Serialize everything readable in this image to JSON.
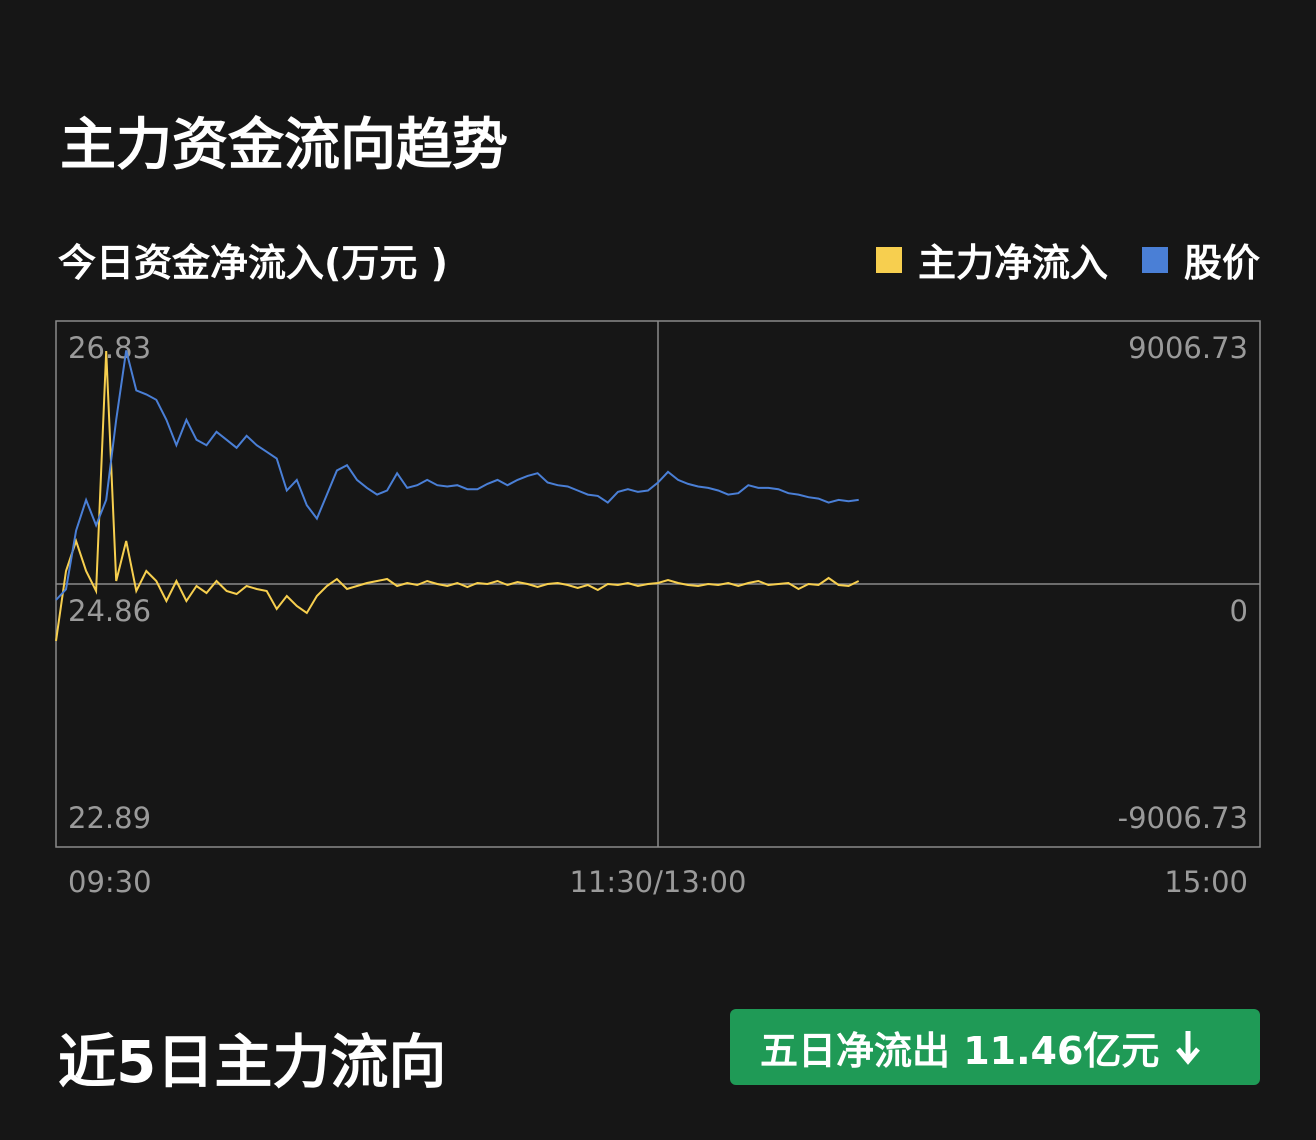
{
  "header": {
    "title": "主力资金流向趋势"
  },
  "chart_data": {
    "type": "line",
    "subtitle": "今日资金净流入(万元 )",
    "x": [
      0,
      2,
      4,
      6,
      8,
      10,
      12,
      14,
      16,
      18,
      20,
      22,
      24,
      26,
      28,
      30,
      32,
      34,
      36,
      38,
      40,
      42,
      44,
      46,
      48,
      50,
      52,
      54,
      56,
      58,
      60,
      62,
      64,
      66,
      68,
      70,
      72,
      74,
      76,
      78,
      80,
      82,
      84,
      86,
      88,
      90,
      92,
      94,
      96,
      98,
      100,
      102,
      104,
      106,
      108,
      110,
      112,
      114,
      116,
      118,
      120,
      122,
      124,
      126,
      128,
      130,
      132,
      134,
      136,
      138,
      140,
      142,
      144,
      146,
      148,
      150,
      152,
      154,
      156,
      158,
      160
    ],
    "xlim": [
      0,
      240
    ],
    "xticks": [
      {
        "value": 0,
        "label": "09:30"
      },
      {
        "value": 120,
        "label": "11:30/13:00"
      },
      {
        "value": 240,
        "label": "15:00"
      }
    ],
    "ylim": [
      22.89,
      26.83
    ],
    "yticks": [
      26.83,
      24.86,
      22.89
    ],
    "y2lim": [
      -9006.73,
      9006.73
    ],
    "y2ticks": [
      9006.73,
      0,
      -9006.73
    ],
    "grid": true,
    "series": [
      {
        "name": "主力净流入",
        "color": "#f7cf4f",
        "axis": "y2",
        "values": [
          -1952,
          445,
          1473,
          445,
          -240,
          7981,
          103,
          1473,
          -240,
          445,
          103,
          -582,
          103,
          -582,
          -68,
          -308,
          103,
          -240,
          -342,
          -68,
          -171,
          -240,
          -856,
          -411,
          -753,
          -993,
          -411,
          -68,
          171,
          -171,
          -68,
          34,
          103,
          171,
          -68,
          34,
          -34,
          103,
          0,
          -68,
          34,
          -103,
          34,
          0,
          103,
          -34,
          68,
          0,
          -103,
          0,
          34,
          -34,
          -137,
          -34,
          -205,
          0,
          -34,
          34,
          -68,
          0,
          34,
          137,
          34,
          -34,
          -68,
          0,
          -34,
          34,
          -68,
          34,
          103,
          -34,
          0,
          34,
          -171,
          0,
          -34,
          205,
          -34,
          -68,
          103
        ]
      },
      {
        "name": "股价",
        "color": "#4a7fd6",
        "axis": "y",
        "values": [
          24.74,
          24.82,
          25.26,
          25.49,
          25.3,
          25.49,
          26.09,
          26.61,
          26.31,
          26.28,
          26.24,
          26.09,
          25.9,
          26.09,
          25.94,
          25.9,
          26.0,
          25.94,
          25.88,
          25.97,
          25.9,
          25.85,
          25.8,
          25.56,
          25.64,
          25.45,
          25.35,
          25.53,
          25.71,
          25.75,
          25.64,
          25.58,
          25.53,
          25.56,
          25.69,
          25.58,
          25.6,
          25.64,
          25.6,
          25.59,
          25.6,
          25.57,
          25.57,
          25.61,
          25.64,
          25.6,
          25.64,
          25.67,
          25.69,
          25.62,
          25.6,
          25.59,
          25.56,
          25.53,
          25.52,
          25.47,
          25.55,
          25.57,
          25.55,
          25.56,
          25.62,
          25.7,
          25.64,
          25.61,
          25.59,
          25.58,
          25.56,
          25.53,
          25.54,
          25.6,
          25.58,
          25.58,
          25.57,
          25.54,
          25.53,
          25.51,
          25.5,
          25.47,
          25.49,
          25.48,
          25.49
        ]
      }
    ]
  },
  "footer": {
    "title": "近5日主力流向",
    "badge": "五日净流出 11.46亿元"
  }
}
